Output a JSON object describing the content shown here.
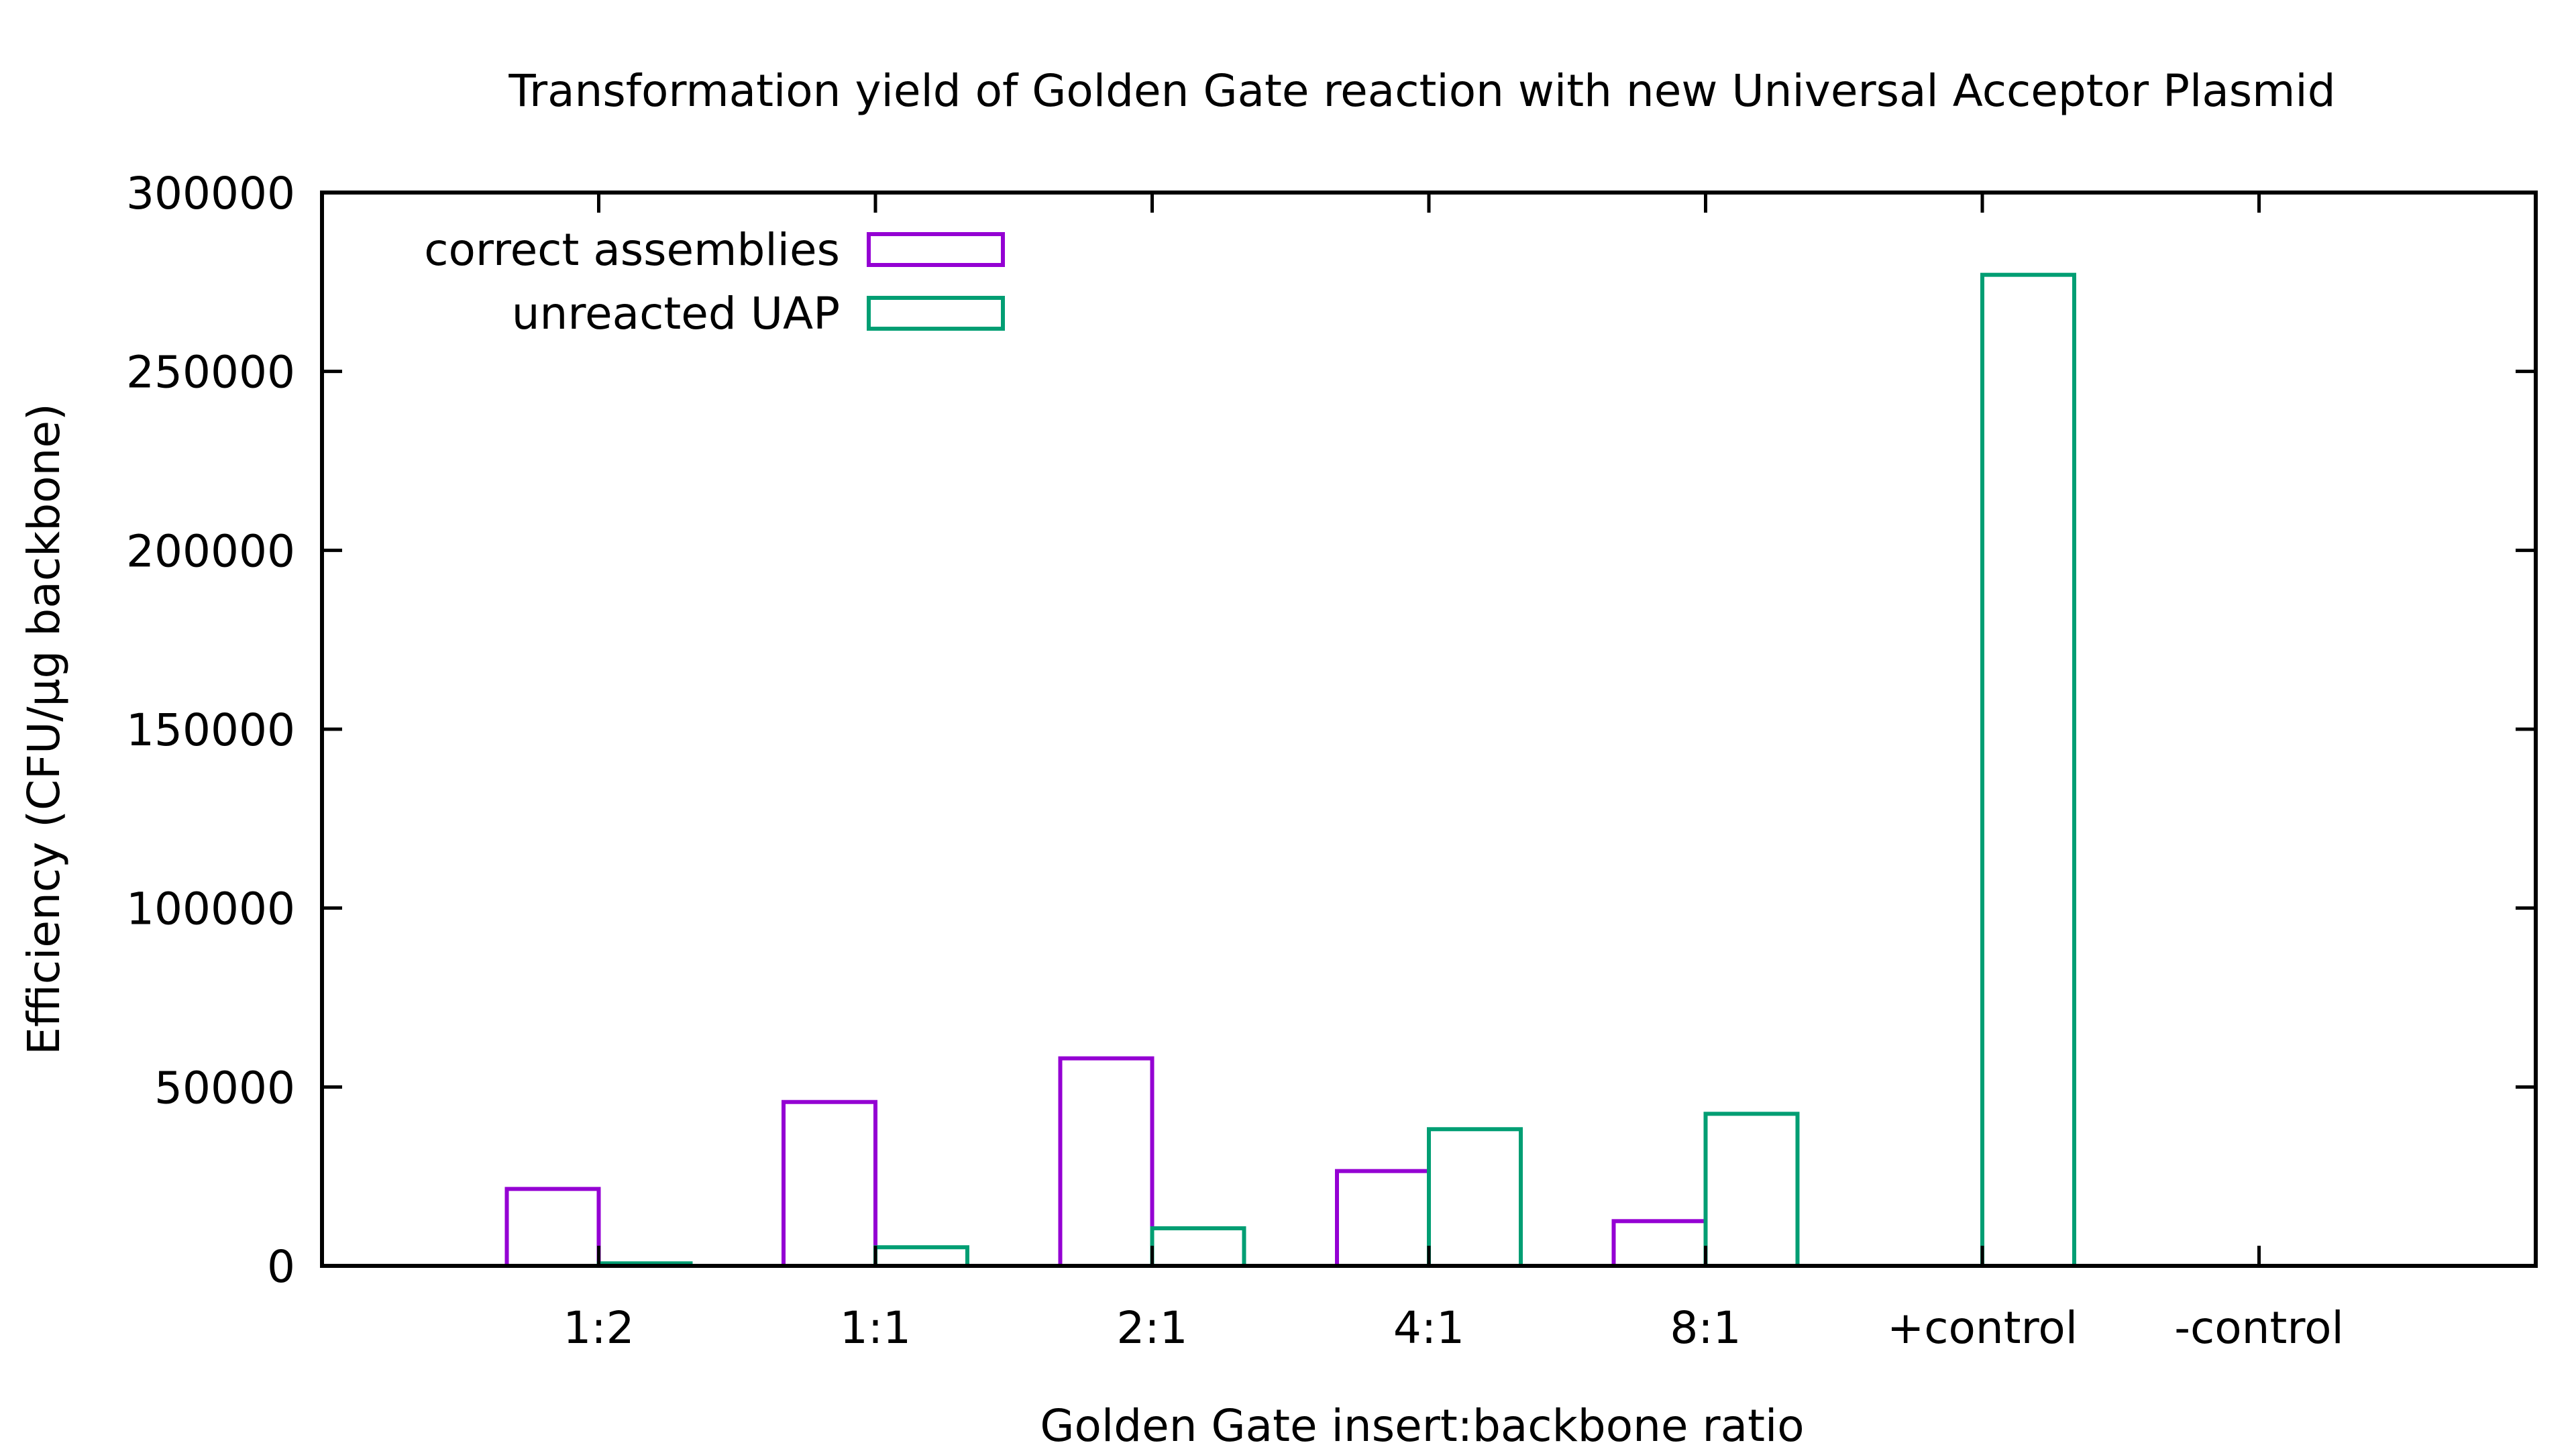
{
  "chart_data": {
    "type": "bar",
    "title": "Transformation yield of Golden Gate reaction with new Universal Acceptor Plasmid",
    "xlabel": "Golden Gate insert:backbone ratio",
    "ylabel": "Efficiency (CFU/µg backbone)",
    "categories": [
      "1:2",
      "1:1",
      "2:1",
      "4:1",
      "8:1",
      "+control",
      "-control"
    ],
    "series": [
      {
        "name": "correct assemblies",
        "color": "#9400d3",
        "values": [
          21500,
          45800,
          58000,
          26500,
          12500,
          0,
          0
        ]
      },
      {
        "name": "unreacted UAP",
        "color": "#009e73",
        "values": [
          700,
          5200,
          10500,
          38200,
          42500,
          277000,
          0
        ]
      }
    ],
    "ylim": [
      0,
      300000
    ],
    "yticks": [
      0,
      50000,
      100000,
      150000,
      200000,
      250000,
      300000
    ],
    "ytick_labels": [
      "0",
      "50000",
      "100000",
      "150000",
      "200000",
      "250000",
      "300000"
    ],
    "grid": false,
    "legend_position": "top-left"
  }
}
